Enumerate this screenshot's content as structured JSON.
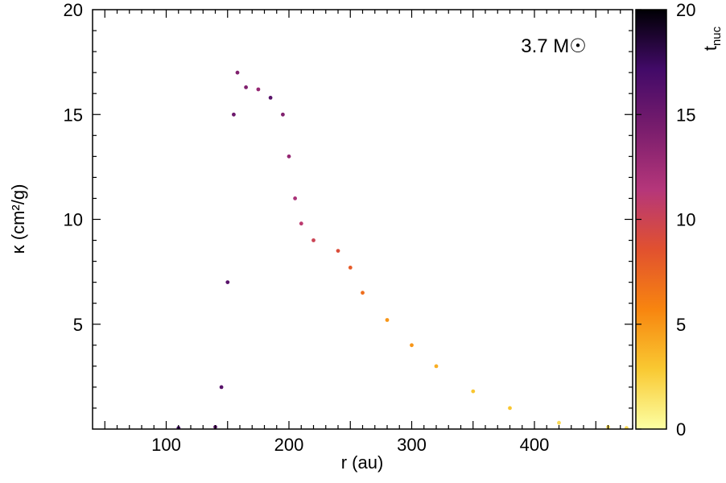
{
  "chart_data": {
    "type": "scatter",
    "title": "",
    "annotation": "3.7 M☉",
    "xlabel": "r (au)",
    "ylabel": "κ (cm²/g)",
    "xlim": [
      40,
      480
    ],
    "ylim": [
      0,
      20
    ],
    "xticks": [
      100,
      200,
      300,
      400
    ],
    "yticks": [
      5,
      10,
      15,
      20
    ],
    "grid": false,
    "colorbar": {
      "label": "t_nuc",
      "label_main": "t",
      "label_sub": "nuc",
      "range": [
        0,
        20
      ],
      "ticks": [
        0,
        5,
        10,
        15,
        20
      ],
      "colormap": "inferno_r",
      "colors": [
        "#fcffa4",
        "#f9c932",
        "#f8850f",
        "#e1512f",
        "#b5367a",
        "#7a1d6d",
        "#420a68",
        "#000004"
      ]
    },
    "series": [
      {
        "points": [
          {
            "x": 110,
            "y": 0.05,
            "t": 17
          },
          {
            "x": 140,
            "y": 0.1,
            "t": 16
          },
          {
            "x": 145,
            "y": 2.0,
            "t": 16
          },
          {
            "x": 150,
            "y": 7.0,
            "t": 16
          },
          {
            "x": 155,
            "y": 15.0,
            "t": 15
          },
          {
            "x": 158,
            "y": 17.0,
            "t": 14
          },
          {
            "x": 165,
            "y": 16.3,
            "t": 14
          },
          {
            "x": 175,
            "y": 16.2,
            "t": 13
          },
          {
            "x": 185,
            "y": 15.8,
            "t": 16
          },
          {
            "x": 195,
            "y": 15.0,
            "t": 14
          },
          {
            "x": 200,
            "y": 13.0,
            "t": 13
          },
          {
            "x": 205,
            "y": 11.0,
            "t": 12
          },
          {
            "x": 210,
            "y": 9.8,
            "t": 11
          },
          {
            "x": 220,
            "y": 9.0,
            "t": 10
          },
          {
            "x": 240,
            "y": 8.5,
            "t": 9
          },
          {
            "x": 250,
            "y": 7.7,
            "t": 8
          },
          {
            "x": 260,
            "y": 6.5,
            "t": 7
          },
          {
            "x": 280,
            "y": 5.2,
            "t": 5
          },
          {
            "x": 300,
            "y": 4.0,
            "t": 5
          },
          {
            "x": 320,
            "y": 3.0,
            "t": 4
          },
          {
            "x": 350,
            "y": 1.8,
            "t": 3
          },
          {
            "x": 380,
            "y": 1.0,
            "t": 3
          },
          {
            "x": 420,
            "y": 0.3,
            "t": 2
          },
          {
            "x": 460,
            "y": 0.1,
            "t": 2
          },
          {
            "x": 475,
            "y": 0.05,
            "t": 2
          }
        ]
      }
    ]
  }
}
